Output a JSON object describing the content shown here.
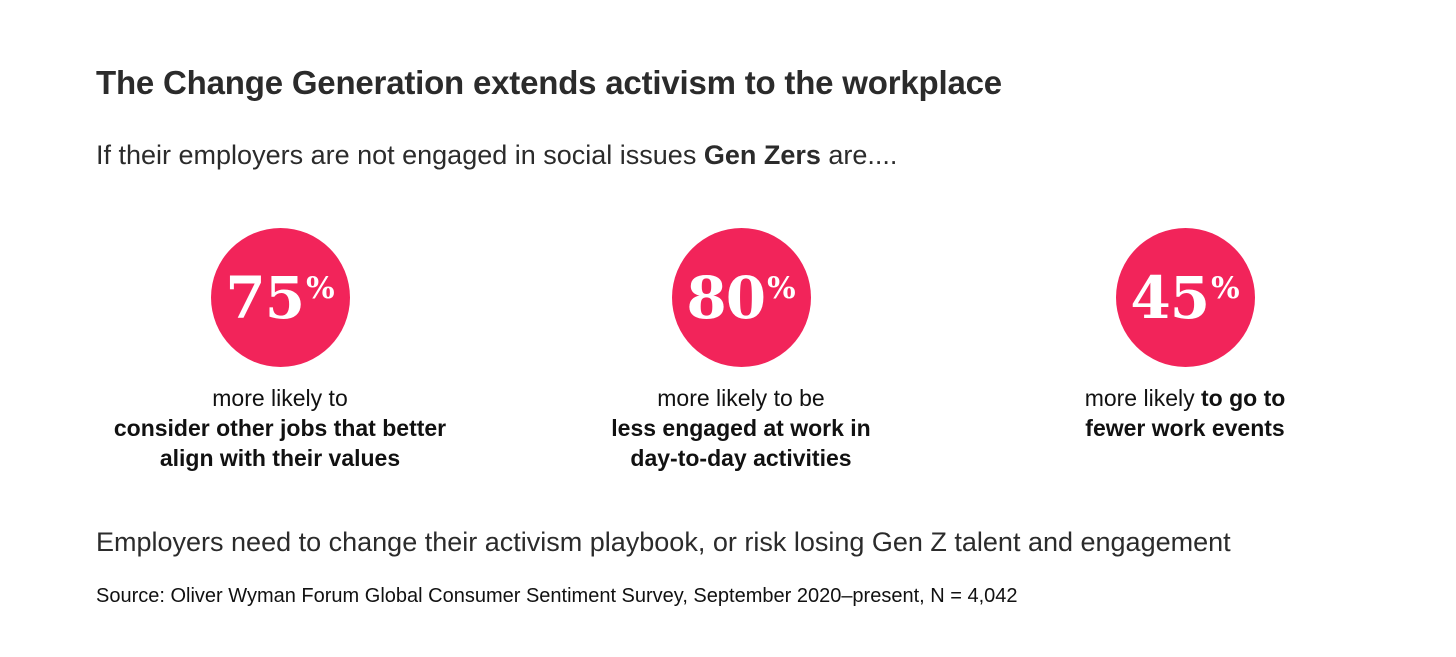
{
  "title": "The Change Generation extends activism to the workplace",
  "subtitle": {
    "prefix": "If their employers are not engaged in social issues ",
    "bold": "Gen Zers",
    "suffix": " are...."
  },
  "colors": {
    "accent": "#f2245a",
    "text": "#2b2b2b"
  },
  "stats": [
    {
      "value": "75",
      "unit": "%",
      "lead": "more likely to",
      "bold_lines": [
        "consider other jobs that better",
        "align with their values"
      ]
    },
    {
      "value": "80",
      "unit": "%",
      "lead": "more likely to be",
      "bold_lines": [
        "less engaged at work in",
        "day-to-day activities"
      ]
    },
    {
      "value": "45",
      "unit": "%",
      "lead": "more likely ",
      "lead_bold": "to go to",
      "bold_lines": [
        "fewer work events"
      ]
    }
  ],
  "footer": "Employers need to change their activism playbook, or risk losing Gen Z talent and engagement",
  "source": "Source: Oliver Wyman Forum Global Consumer Sentiment Survey, September 2020–present, N = 4,042"
}
